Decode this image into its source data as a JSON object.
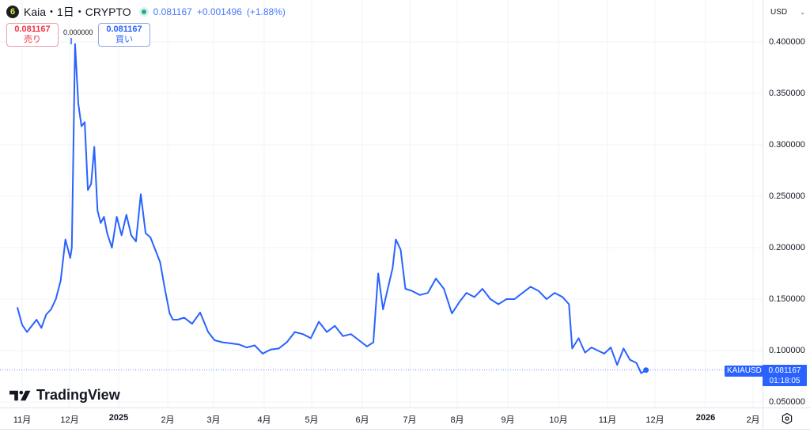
{
  "header": {
    "logo_glyph": "6",
    "title": "Kaia・1日・CRYPTO",
    "last": "0.081167",
    "change": "+0.001496",
    "change_pct": "(+1.88%)"
  },
  "order_boxes": {
    "sell_price": "0.081167",
    "sell_label": "売り",
    "spread": "0.000000",
    "buy_price": "0.081167",
    "buy_label": "買い"
  },
  "currency": "USD",
  "price_axis": {
    "ticks": [
      "0.400000",
      "0.350000",
      "0.300000",
      "0.250000",
      "0.200000",
      "0.150000",
      "0.100000",
      "0.050000"
    ]
  },
  "time_axis": {
    "ticks": [
      {
        "label": "11月",
        "bold": false
      },
      {
        "label": "12月",
        "bold": false
      },
      {
        "label": "2025",
        "bold": true
      },
      {
        "label": "2月",
        "bold": false
      },
      {
        "label": "3月",
        "bold": false
      },
      {
        "label": "4月",
        "bold": false
      },
      {
        "label": "5月",
        "bold": false
      },
      {
        "label": "6月",
        "bold": false
      },
      {
        "label": "7月",
        "bold": false
      },
      {
        "label": "8月",
        "bold": false
      },
      {
        "label": "9月",
        "bold": false
      },
      {
        "label": "10月",
        "bold": false
      },
      {
        "label": "11月",
        "bold": false
      },
      {
        "label": "12月",
        "bold": false
      },
      {
        "label": "2026",
        "bold": true
      },
      {
        "label": "2月",
        "bold": false
      }
    ]
  },
  "last_price_tag": {
    "symbol": "KAIAUSD",
    "price": "0.081167",
    "countdown": "01:18:05"
  },
  "branding": "TradingView",
  "colors": {
    "line": "#2962ff",
    "up": "#22ab94",
    "sell": "#f23645",
    "buy": "#2962ff",
    "grid": "#f0f3fa"
  },
  "chart_data": {
    "type": "line",
    "title": "Kaia・1日・CRYPTO",
    "series": [
      {
        "name": "KAIAUSD",
        "x": [
          "2024-10-29",
          "2024-11-01",
          "2024-11-04",
          "2024-11-07",
          "2024-11-10",
          "2024-11-13",
          "2024-11-16",
          "2024-11-19",
          "2024-11-22",
          "2024-11-25",
          "2024-11-28",
          "2024-12-01",
          "2024-12-02",
          "2024-12-04",
          "2024-12-06",
          "2024-12-08",
          "2024-12-10",
          "2024-12-12",
          "2024-12-14",
          "2024-12-16",
          "2024-12-18",
          "2024-12-20",
          "2024-12-22",
          "2024-12-24",
          "2024-12-27",
          "2024-12-30",
          "2025-01-02",
          "2025-01-05",
          "2025-01-08",
          "2025-01-11",
          "2025-01-14",
          "2025-01-17",
          "2025-01-20",
          "2025-01-23",
          "2025-01-26",
          "2025-01-29",
          "2025-02-01",
          "2025-02-03",
          "2025-02-06",
          "2025-02-10",
          "2025-02-15",
          "2025-02-20",
          "2025-02-25",
          "2025-03-01",
          "2025-03-06",
          "2025-03-11",
          "2025-03-16",
          "2025-03-21",
          "2025-03-26",
          "2025-03-31",
          "2025-04-05",
          "2025-04-10",
          "2025-04-15",
          "2025-04-20",
          "2025-04-25",
          "2025-04-30",
          "2025-05-05",
          "2025-05-10",
          "2025-05-15",
          "2025-05-20",
          "2025-05-25",
          "2025-05-30",
          "2025-06-04",
          "2025-06-08",
          "2025-06-11",
          "2025-06-14",
          "2025-06-17",
          "2025-06-20",
          "2025-06-22",
          "2025-06-25",
          "2025-06-28",
          "2025-07-02",
          "2025-07-07",
          "2025-07-12",
          "2025-07-17",
          "2025-07-22",
          "2025-07-27",
          "2025-08-01",
          "2025-08-05",
          "2025-08-10",
          "2025-08-15",
          "2025-08-20",
          "2025-08-25",
          "2025-08-30",
          "2025-09-04",
          "2025-09-09",
          "2025-09-14",
          "2025-09-19",
          "2025-09-24",
          "2025-09-29",
          "2025-10-04",
          "2025-10-08",
          "2025-10-10",
          "2025-10-14",
          "2025-10-18",
          "2025-10-22",
          "2025-10-26",
          "2025-10-30",
          "2025-11-03",
          "2025-11-07",
          "2025-11-11",
          "2025-11-15",
          "2025-11-19",
          "2025-11-22",
          "2025-11-25"
        ],
        "values": [
          0.142,
          0.125,
          0.118,
          0.124,
          0.13,
          0.122,
          0.135,
          0.14,
          0.15,
          0.168,
          0.208,
          0.19,
          0.2,
          0.398,
          0.34,
          0.318,
          0.322,
          0.256,
          0.262,
          0.298,
          0.236,
          0.224,
          0.23,
          0.214,
          0.2,
          0.23,
          0.212,
          0.232,
          0.212,
          0.206,
          0.252,
          0.214,
          0.21,
          0.198,
          0.186,
          0.16,
          0.136,
          0.13,
          0.13,
          0.132,
          0.126,
          0.137,
          0.118,
          0.11,
          0.108,
          0.107,
          0.106,
          0.103,
          0.105,
          0.097,
          0.101,
          0.102,
          0.108,
          0.118,
          0.116,
          0.112,
          0.128,
          0.118,
          0.124,
          0.114,
          0.116,
          0.11,
          0.104,
          0.108,
          0.175,
          0.14,
          0.16,
          0.18,
          0.208,
          0.198,
          0.16,
          0.158,
          0.154,
          0.156,
          0.17,
          0.16,
          0.136,
          0.148,
          0.156,
          0.152,
          0.16,
          0.15,
          0.145,
          0.15,
          0.15,
          0.156,
          0.162,
          0.158,
          0.15,
          0.156,
          0.152,
          0.145,
          0.102,
          0.112,
          0.098,
          0.103,
          0.1,
          0.097,
          0.103,
          0.086,
          0.102,
          0.091,
          0.088,
          0.078,
          0.081
        ]
      }
    ],
    "xlabel": "",
    "ylabel": "USD",
    "ylim": [
      0.04,
      0.43
    ],
    "x_tick_labels": [
      "11月",
      "12月",
      "2025",
      "2月",
      "3月",
      "4月",
      "5月",
      "6月",
      "7月",
      "8月",
      "9月",
      "10月",
      "11月",
      "12月",
      "2026",
      "2月"
    ],
    "y_tick_labels": [
      "0.050000",
      "0.100000",
      "0.150000",
      "0.200000",
      "0.250000",
      "0.300000",
      "0.350000",
      "0.400000"
    ],
    "last_value": 0.081167,
    "annotations": [
      "0.000000",
      "KAIAUSD 0.081167 01:18:05"
    ],
    "grid": true,
    "legend_position": "none"
  }
}
